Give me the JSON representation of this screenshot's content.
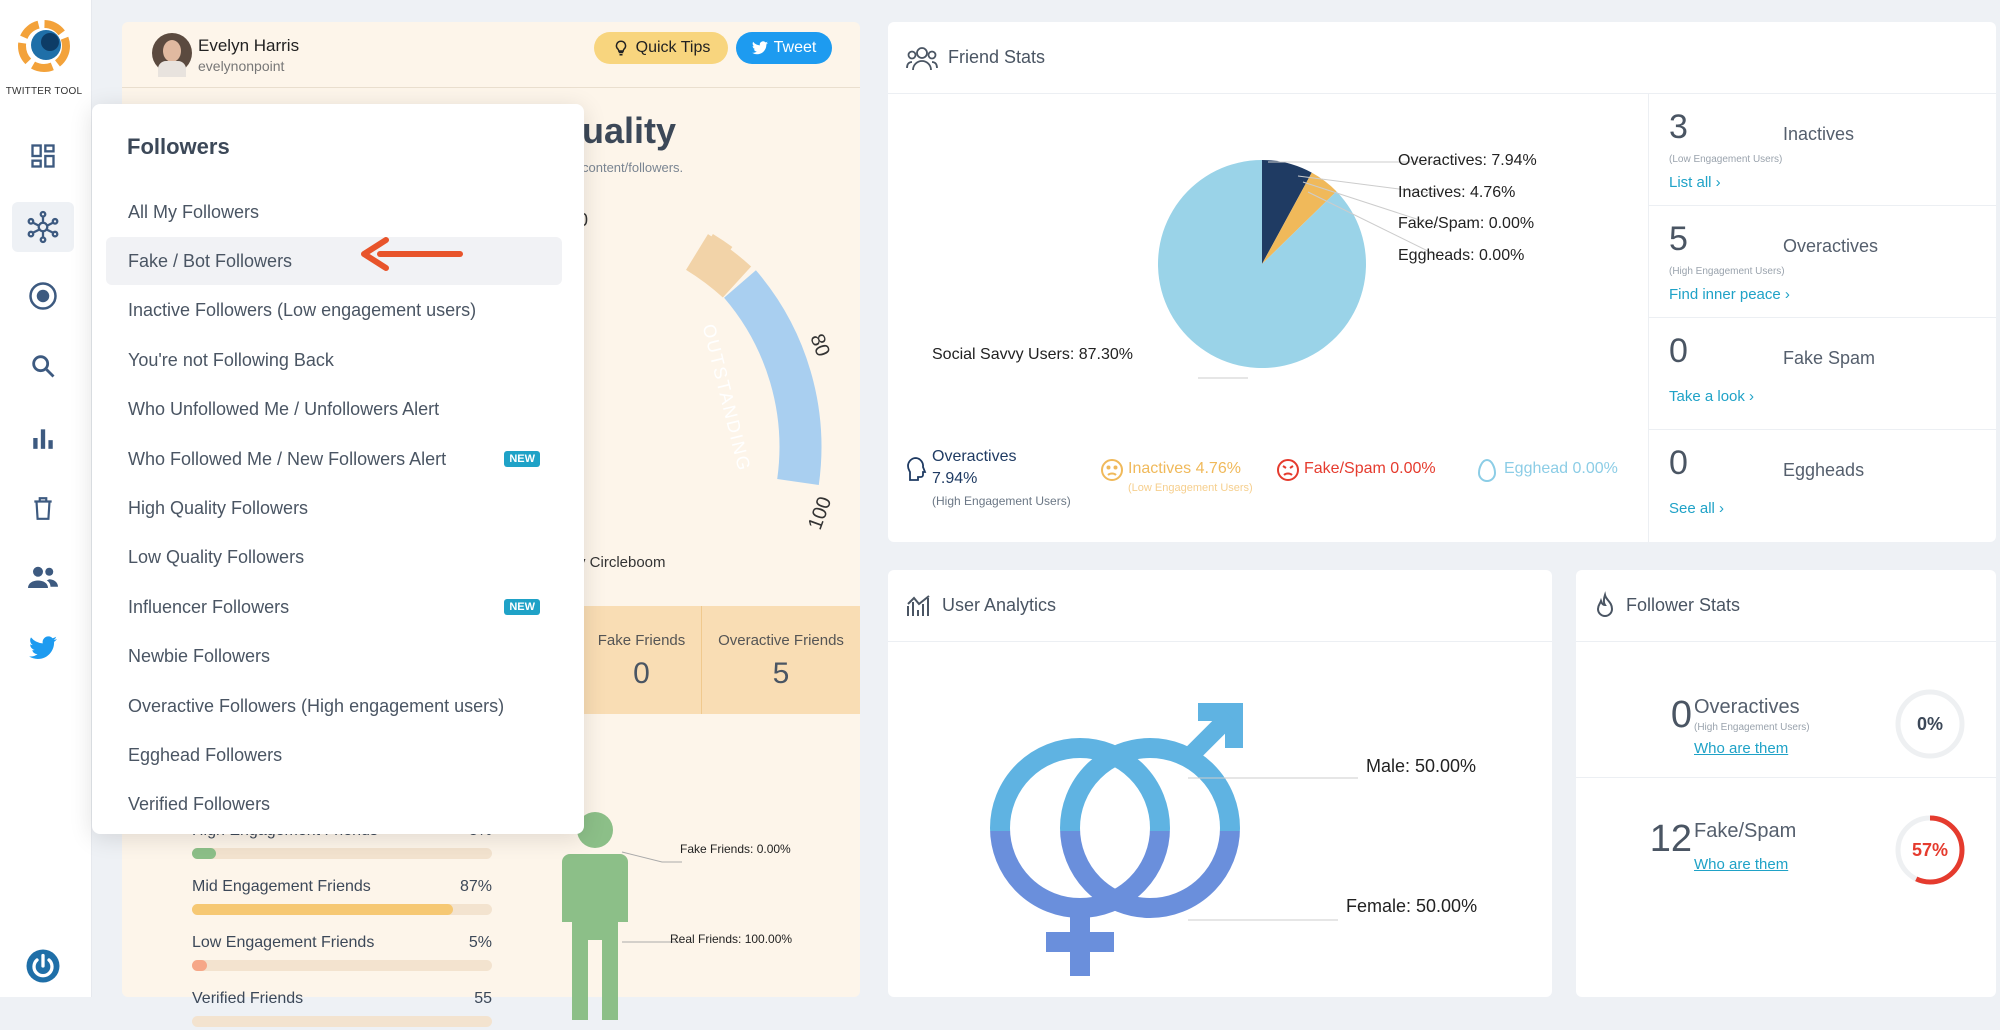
{
  "app": {
    "logo_text": "TWITTER TOOL"
  },
  "sidebar": {
    "icons": [
      "dashboard-icon",
      "network-icon",
      "target-icon",
      "search-icon",
      "bar-chart-icon",
      "trash-icon",
      "people-icon",
      "twitter-icon"
    ],
    "power_icon": "power-icon"
  },
  "user": {
    "name": "Evelyn Harris",
    "handle": "evelynonpoint"
  },
  "header_buttons": {
    "quick_tips": "Quick Tips",
    "tweet": "Tweet"
  },
  "quality_card": {
    "title_fragment": "uality",
    "subtitle_fragment": "content/followers.",
    "gauge_label": "OUTSTANDING",
    "ticks": [
      "80",
      "100"
    ],
    "tick_fragment": "0",
    "credit_fragment": "y Circleboom",
    "friends": [
      {
        "label": "Fake Friends",
        "value": "0"
      },
      {
        "label": "Overactive Friends",
        "value": "5"
      }
    ]
  },
  "engagement": {
    "rows": [
      {
        "label": "High Engagement Friends",
        "pct": "8%",
        "fill": 8,
        "color": "#8cbf88"
      },
      {
        "label": "Mid Engagement Friends",
        "pct": "87%",
        "fill": 87,
        "color": "#f6c873"
      },
      {
        "label": "Low Engagement Friends",
        "pct": "5%",
        "fill": 5,
        "color": "#f6a788"
      },
      {
        "label": "Verified Friends",
        "pct": "55",
        "fill": 0,
        "color": "#cfd5dc"
      }
    ],
    "figure_labels": {
      "fake": "Fake Friends: 0.00%",
      "real": "Real Friends: 100.00%"
    }
  },
  "dropdown": {
    "title": "Followers",
    "items": [
      {
        "label": "All My Followers"
      },
      {
        "label": "Fake / Bot Followers",
        "selected": true
      },
      {
        "label": "Inactive Followers (Low engagement users)"
      },
      {
        "label": "You're not Following Back"
      },
      {
        "label": "Who Unfollowed Me / Unfollowers Alert"
      },
      {
        "label": "Who Followed Me / New Followers Alert",
        "badge": "NEW"
      },
      {
        "label": "High Quality Followers"
      },
      {
        "label": "Low Quality Followers"
      },
      {
        "label": "Influencer Followers",
        "badge": "NEW"
      },
      {
        "label": "Newbie Followers"
      },
      {
        "label": "Overactive Followers (High engagement users)"
      },
      {
        "label": "Egghead Followers"
      },
      {
        "label": "Verified Followers"
      }
    ]
  },
  "friend_stats": {
    "title": "Friend Stats",
    "pie_labels": {
      "overactives": "Overactives: 7.94%",
      "inactives": "Inactives: 4.76%",
      "fake": "Fake/Spam: 0.00%",
      "eggheads": "Eggheads: 0.00%",
      "social": "Social Savvy Users: 87.30%"
    },
    "chart_data": {
      "type": "pie",
      "categories": [
        "Overactives",
        "Inactives",
        "Fake/Spam",
        "Eggheads",
        "Social Savvy Users"
      ],
      "values": [
        7.94,
        4.76,
        0.0,
        0.0,
        87.3
      ],
      "colors": [
        "#1f3b63",
        "#f0b95a",
        "#e84a3b",
        "#9ad3e8",
        "#9ad3e8"
      ]
    },
    "legend": {
      "overactives": {
        "title": "Overactives",
        "value": "7.94%",
        "sub": "(High Engagement Users)"
      },
      "inactives": {
        "text": "Inactives 4.76%",
        "sub": "(Low Engagement Users)"
      },
      "fake": {
        "text": "Fake/Spam 0.00%"
      },
      "egghead": {
        "text": "Egghead 0.00%"
      }
    },
    "side": [
      {
        "num": "3",
        "label": "Inactives",
        "sub": "(Low Engagement Users)",
        "link": "List all ›"
      },
      {
        "num": "5",
        "label": "Overactives",
        "sub": "(High Engagement Users)",
        "link": "Find inner peace ›"
      },
      {
        "num": "0",
        "label": "Fake Spam",
        "sub": "",
        "link": "Take a look ›"
      },
      {
        "num": "0",
        "label": "Eggheads",
        "sub": "",
        "link": "See all ›"
      }
    ]
  },
  "user_analytics": {
    "title": "User Analytics",
    "male": "Male: 50.00%",
    "female": "Female: 50.00%"
  },
  "follower_stats": {
    "title": "Follower Stats",
    "rows": [
      {
        "num": "0",
        "label": "Overactives",
        "sub": "(High Engagement Users)",
        "link": "Who are them",
        "pct": "0%",
        "fill": 0,
        "color": "#e8eaed"
      },
      {
        "num": "12",
        "label": "Fake/Spam",
        "sub": "",
        "link": "Who are them",
        "pct": "57%",
        "fill": 57,
        "color": "#e53b2e"
      }
    ]
  }
}
